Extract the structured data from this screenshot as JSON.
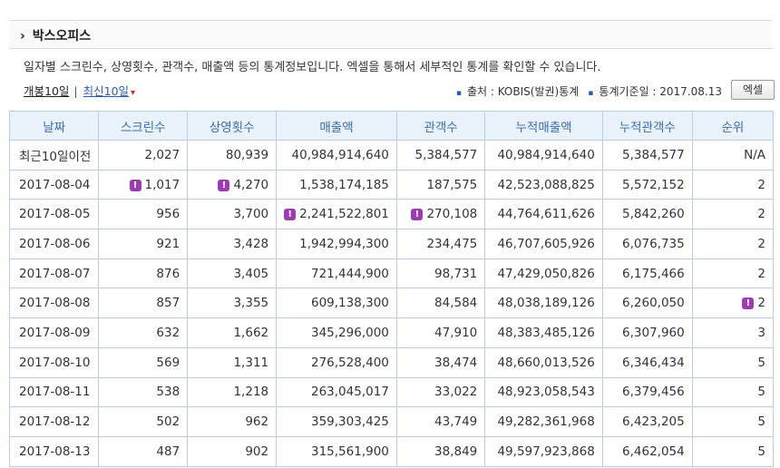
{
  "header": {
    "title": "박스오피스"
  },
  "description": "일자별 스크린수, 상영횟수, 관객수, 매출액 등의 통계정보입니다. 엑셀을 통해서 세부적인 통계를 확인할 수 있습니다.",
  "tabs": [
    "개봉10일",
    "최신10일"
  ],
  "source": "출처 : KOBIS(발권)통계",
  "base_date": "통계기준일 : 2017.08.13",
  "button": "엑셀",
  "table": {
    "columns": [
      "날짜",
      "스크린수",
      "상영횟수",
      "매출액",
      "관객수",
      "누적매출액",
      "누적관객수",
      "순위"
    ],
    "rows": [
      [
        "최근10일이전",
        "2,027",
        "80,939",
        "40,984,914,640",
        "5,384,577",
        "40,984,914,640",
        "5,384,577",
        "N/A"
      ],
      [
        "2017-08-04",
        {
          "badge": "!",
          "text": "1,017"
        },
        {
          "badge": "!",
          "text": "4,270"
        },
        "1,538,174,185",
        "187,575",
        "42,523,088,825",
        "5,572,152",
        "2"
      ],
      [
        "2017-08-05",
        "956",
        "3,700",
        {
          "badge": "!",
          "text": "2,241,522,801"
        },
        {
          "badge": "!",
          "text": "270,108"
        },
        "44,764,611,626",
        "5,842,260",
        "2"
      ],
      [
        "2017-08-06",
        "921",
        "3,428",
        "1,942,994,300",
        "234,475",
        "46,707,605,926",
        "6,076,735",
        "2"
      ],
      [
        "2017-08-07",
        "876",
        "3,405",
        "721,444,900",
        "98,731",
        "47,429,050,826",
        "6,175,466",
        "2"
      ],
      [
        "2017-08-08",
        "857",
        "3,355",
        "609,138,300",
        "84,584",
        "48,038,189,126",
        "6,260,050",
        {
          "badge": "!",
          "text": "2"
        }
      ],
      [
        "2017-08-09",
        "632",
        "1,662",
        "345,296,000",
        "47,910",
        "48,383,485,126",
        "6,307,960",
        "3"
      ],
      [
        "2017-08-10",
        "569",
        "1,311",
        "276,528,400",
        "38,474",
        "48,660,013,526",
        "6,346,434",
        "5"
      ],
      [
        "2017-08-11",
        "538",
        "1,218",
        "263,045,017",
        "33,022",
        "48,923,058,543",
        "6,379,456",
        "5"
      ],
      [
        "2017-08-12",
        "502",
        "962",
        "359,303,425",
        "43,749",
        "49,282,361,968",
        "6,423,205",
        "5"
      ],
      [
        "2017-08-13",
        "487",
        "902",
        "315,561,900",
        "38,849",
        "49,597,923,868",
        "6,462,054",
        "5"
      ]
    ]
  }
}
